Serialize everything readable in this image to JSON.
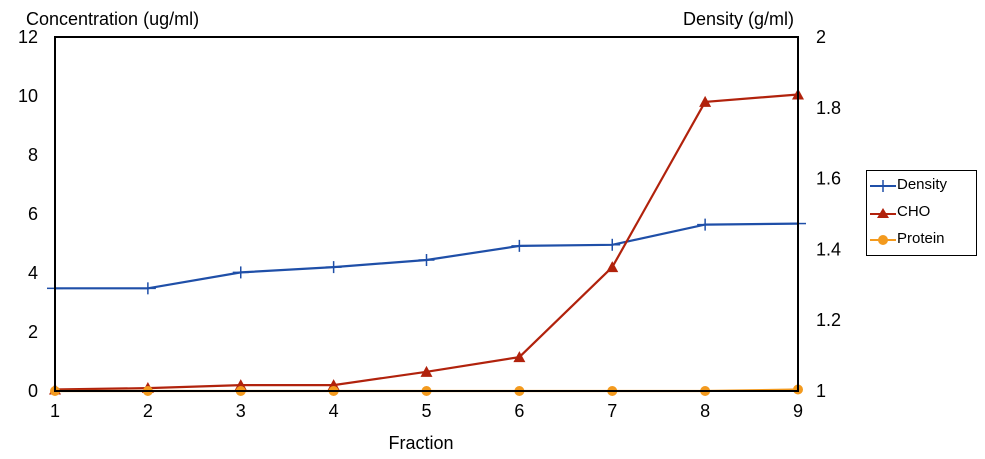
{
  "chart_data": {
    "type": "line",
    "x": [
      1,
      2,
      3,
      4,
      5,
      6,
      7,
      8,
      9
    ],
    "xlabel": "Fraction",
    "left_axis_label": "Concentration (ug/ml)",
    "right_axis_label": "Density (g/ml)",
    "left_ylim": [
      0,
      12
    ],
    "left_yticks": [
      0,
      2,
      4,
      6,
      8,
      10,
      12
    ],
    "right_ylim": [
      1,
      2
    ],
    "right_yticks": [
      "1",
      "1.2",
      "1.4",
      "1.6",
      "1.8",
      "2"
    ],
    "legend_position": "right",
    "series": [
      {
        "name": "Density",
        "axis": "right",
        "marker": "plus",
        "color": "#1f4fa8",
        "values": [
          1.29,
          1.29,
          1.335,
          1.35,
          1.37,
          1.41,
          1.413,
          1.47,
          1.473
        ]
      },
      {
        "name": "CHO",
        "axis": "left",
        "marker": "triangle",
        "color": "#b1220c",
        "values": [
          0.05,
          0.1,
          0.2,
          0.2,
          0.65,
          1.15,
          4.2,
          9.8,
          10.05
        ]
      },
      {
        "name": "Protein",
        "axis": "left",
        "marker": "circle",
        "color": "#f39a1e",
        "values": [
          0,
          0,
          0,
          0,
          0,
          0,
          0,
          0,
          0.05
        ]
      }
    ]
  }
}
